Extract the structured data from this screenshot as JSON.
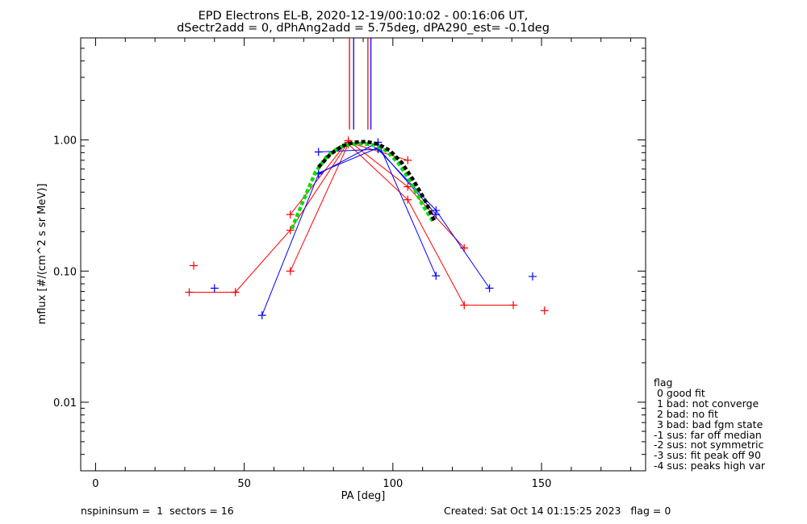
{
  "chart_data": {
    "type": "line",
    "title": [
      "EPD Electrons EL-B, 2020-12-19/00:10:02 - 00:16:06 UT,",
      "dSectr2add = 0, dPhAng2add = 5.75deg, dPA290_est=  -0.1deg"
    ],
    "xlabel": "PA [deg]",
    "ylabel": "mflux [#/(cm^2 s sr MeV)]",
    "xlim": [
      -5,
      185
    ],
    "ylim": [
      0.003,
      6
    ],
    "yscale": "log",
    "xticks": [
      0,
      50,
      100,
      150
    ],
    "yticks": [
      {
        "v": 0.01,
        "label": "0.01"
      },
      {
        "v": 0.1,
        "label": "0.10"
      },
      {
        "v": 1,
        "label": "1.00"
      }
    ],
    "series": [
      {
        "color": "#ff0000",
        "style": "plus-line",
        "points": [
          [
            31.5,
            0.069
          ],
          [
            47,
            0.069
          ]
        ]
      },
      {
        "color": "#ff0000",
        "style": "plus-line",
        "points": [
          [
            47,
            0.069
          ],
          [
            65.5,
            0.205
          ],
          [
            85,
            0.96
          ],
          [
            105,
            0.7
          ]
        ]
      },
      {
        "color": "#ff0000",
        "style": "plus-line",
        "points": [
          [
            65.5,
            0.27
          ],
          [
            85,
            0.99
          ],
          [
            105,
            0.44
          ],
          [
            124,
            0.15
          ]
        ]
      },
      {
        "color": "#ff0000",
        "style": "plus-line",
        "points": [
          [
            65.5,
            0.1
          ],
          [
            85,
            0.93
          ],
          [
            105,
            0.35
          ],
          [
            124,
            0.055
          ],
          [
            140.5,
            0.055
          ]
        ]
      },
      {
        "color": "#0000ff",
        "style": "plus-line",
        "points": [
          [
            56,
            0.046
          ],
          [
            75,
            0.55
          ],
          [
            95,
            0.96
          ],
          [
            114.5,
            0.092
          ]
        ]
      },
      {
        "color": "#0000ff",
        "style": "plus-line",
        "points": [
          [
            75,
            0.81
          ],
          [
            95,
            0.85
          ],
          [
            114.5,
            0.29
          ],
          [
            132.5,
            0.074
          ]
        ]
      },
      {
        "color": "#0000ff",
        "style": "plus-line",
        "points": [
          [
            75,
            0.56
          ],
          [
            95,
            0.87
          ],
          [
            114.5,
            0.27
          ]
        ]
      },
      {
        "color": "#ff0000",
        "style": "plus",
        "points": [
          [
            33,
            0.11
          ],
          [
            151,
            0.05
          ]
        ]
      },
      {
        "color": "#0000ff",
        "style": "plus",
        "points": [
          [
            40,
            0.074
          ],
          [
            147,
            0.091
          ]
        ]
      },
      {
        "color": "#00dd00",
        "style": "dashed-thick",
        "points": [
          [
            66,
            0.21
          ],
          [
            70,
            0.35
          ],
          [
            74,
            0.57
          ],
          [
            78,
            0.76
          ],
          [
            82,
            0.88
          ],
          [
            86,
            0.93
          ],
          [
            90,
            0.94
          ],
          [
            94,
            0.91
          ],
          [
            98,
            0.82
          ],
          [
            102,
            0.66
          ],
          [
            106,
            0.48
          ],
          [
            110,
            0.32
          ],
          [
            113.5,
            0.24
          ]
        ]
      },
      {
        "color": "#000000",
        "style": "dashed-thick",
        "points": [
          [
            75,
            0.62
          ],
          [
            79,
            0.78
          ],
          [
            83,
            0.9
          ],
          [
            87,
            0.96
          ],
          [
            91,
            0.97
          ],
          [
            95,
            0.93
          ],
          [
            99,
            0.83
          ],
          [
            103,
            0.67
          ],
          [
            107,
            0.49
          ],
          [
            111,
            0.34
          ],
          [
            114,
            0.24
          ]
        ]
      },
      {
        "color": "#ff0000",
        "style": "vline",
        "points": [
          [
            85.4,
            1.2
          ],
          [
            85.4,
            6
          ]
        ]
      },
      {
        "color": "#ff0000",
        "style": "vline",
        "points": [
          [
            91.6,
            1.2
          ],
          [
            91.6,
            6
          ]
        ]
      },
      {
        "color": "#0000ff",
        "style": "vline",
        "points": [
          [
            86.8,
            1.2
          ],
          [
            86.8,
            6
          ]
        ]
      },
      {
        "color": "#0000ff",
        "style": "vline",
        "points": [
          [
            92.6,
            1.2
          ],
          [
            92.6,
            6
          ]
        ]
      }
    ],
    "grid": false,
    "legend_position": "right"
  },
  "legend": {
    "lines": [
      "flag",
      " 0 good fit",
      " 1 bad: not converge",
      " 2 bad: no fit",
      " 3 bad: bad fgm state",
      "-1 sus: far off median",
      "-2 sus: not symmetric",
      "-3 sus: fit peak off 90",
      "-4 sus: peaks high var"
    ]
  },
  "footer": {
    "left": "nspininsum =  1  sectors = 16",
    "right": "Created: Sat Oct 14 01:15:25 2023   flag = 0"
  }
}
